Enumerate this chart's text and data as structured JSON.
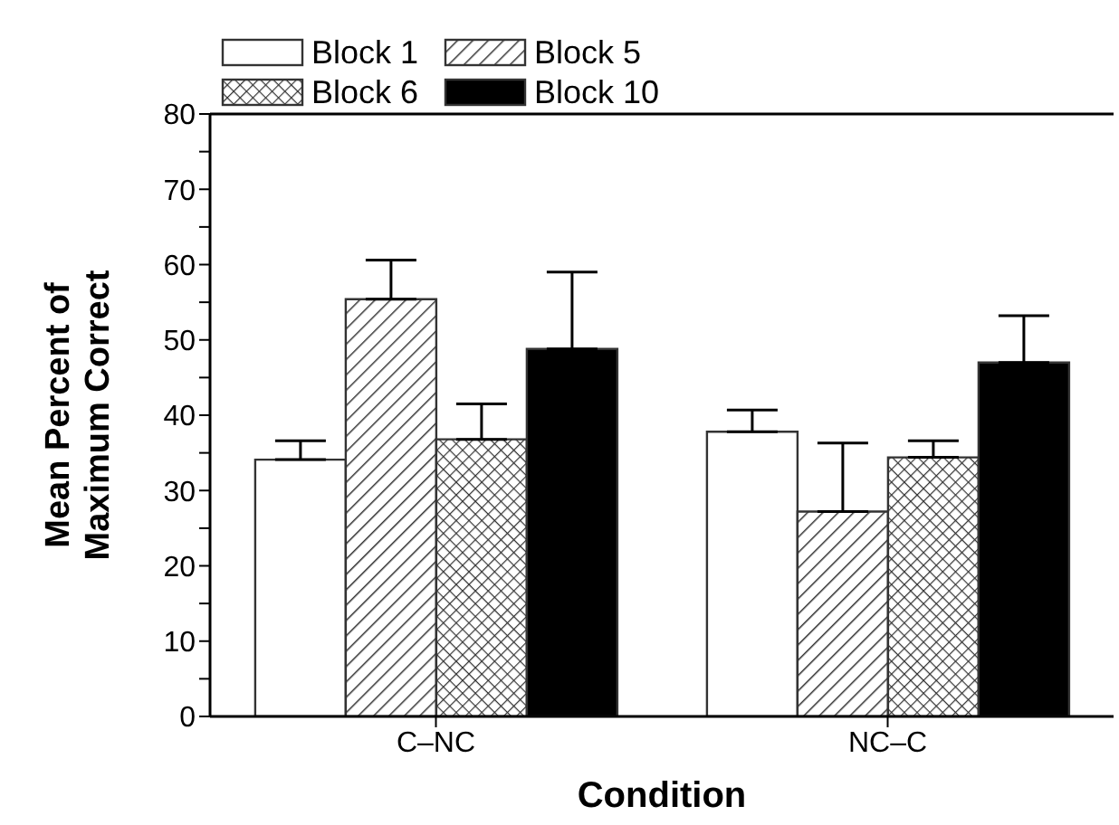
{
  "chart_data": {
    "type": "bar",
    "xlabel": "Condition",
    "ylabel": "Mean Percent of\nMaximum Correct",
    "categories": [
      "C–NC",
      "NC–C"
    ],
    "series": [
      {
        "name": "Block 1",
        "color": "#ffffff",
        "values": [
          34.1,
          37.8
        ],
        "errors": [
          [
            34.1,
            36.6
          ],
          [
            37.8,
            40.7
          ]
        ]
      },
      {
        "name": "Block 5",
        "color": "#333333",
        "values": [
          55.4,
          27.2
        ],
        "errors": [
          [
            55.4,
            60.6
          ],
          [
            27.2,
            36.3
          ]
        ]
      },
      {
        "name": "Block 6",
        "color": "#333333",
        "values": [
          36.8,
          34.4
        ],
        "errors": [
          [
            36.8,
            41.5
          ],
          [
            34.4,
            36.6
          ]
        ]
      },
      {
        "name": "Block 10",
        "color": "#000000",
        "values": [
          48.8,
          47.0
        ],
        "errors": [
          [
            48.8,
            59.0
          ],
          [
            47.0,
            53.2
          ]
        ]
      }
    ],
    "ylim": [
      0,
      80
    ],
    "yticks": [
      0,
      {
        "value": 5,
        "label": null
      },
      10,
      {
        "value": 15,
        "label": null
      },
      20,
      {
        "value": 25,
        "label": null
      },
      30,
      {
        "value": 35,
        "label": null
      },
      40,
      {
        "value": 45,
        "label": null
      },
      50,
      {
        "value": 55,
        "label": null
      },
      60,
      {
        "value": 65,
        "label": null
      },
      70,
      {
        "value": 75,
        "label": null
      },
      80
    ],
    "grid": false,
    "legend": "top"
  }
}
